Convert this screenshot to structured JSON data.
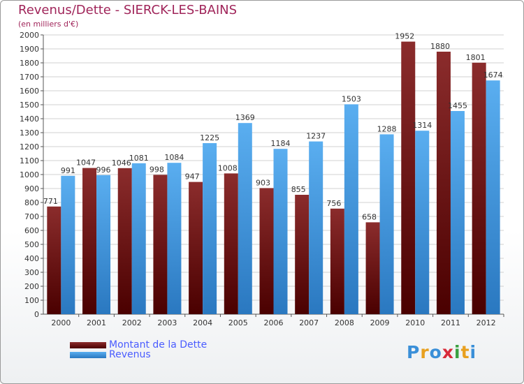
{
  "header": {
    "title": "Revenus/Dette - SIERCK-LES-BAINS",
    "subtitle": "(en milliers d'€)"
  },
  "logo": {
    "text": "Proxiti"
  },
  "colors": {
    "title": "#a0255a",
    "dette_top": "#8b2c2c",
    "dette_bottom": "#4a0000",
    "revenus_top": "#5aaef0",
    "revenus_bottom": "#2a78c0",
    "legend_text": "#4a5cff"
  },
  "chart_data": {
    "type": "bar",
    "title": "Revenus/Dette - SIERCK-LES-BAINS",
    "ylabel": "(en milliers d'€)",
    "xlabel": "",
    "ylim": [
      0,
      2000
    ],
    "ytick_step": 100,
    "grid": true,
    "legend_position": "bottom-left",
    "categories": [
      "2000",
      "2001",
      "2002",
      "2003",
      "2004",
      "2005",
      "2006",
      "2007",
      "2008",
      "2009",
      "2010",
      "2011",
      "2012"
    ],
    "series": [
      {
        "name": "Montant de la Dette",
        "color": "#6e1414",
        "values": [
          771,
          1047,
          1046,
          998,
          947,
          1008,
          903,
          855,
          756,
          658,
          1952,
          1880,
          1801
        ]
      },
      {
        "name": "Revenus",
        "color": "#4ea3e8",
        "values": [
          991,
          996,
          1081,
          1084,
          1225,
          1369,
          1184,
          1237,
          1503,
          1288,
          1314,
          1455,
          1674
        ]
      }
    ]
  }
}
